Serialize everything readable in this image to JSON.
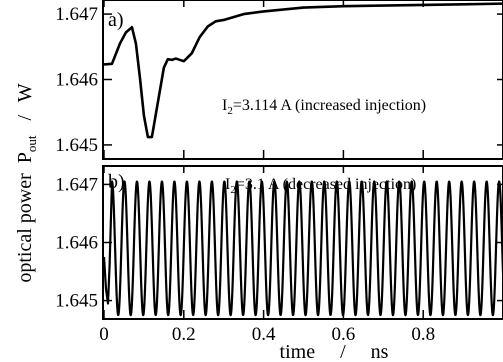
{
  "chart_data": [
    {
      "panel": "a)",
      "type": "line",
      "annotation": {
        "current_symbol": "I",
        "current_subscript": "2",
        "text": "=3.114 A  (increased injection)"
      },
      "ylim": [
        1.6448,
        1.6472
      ],
      "xlim": [
        0,
        1.0
      ],
      "yticks": [
        1.645,
        1.646,
        1.647
      ],
      "ytick_labels": [
        "1.645",
        "1.646",
        "1.647"
      ],
      "series": [
        {
          "x": [
            0,
            0.02,
            0.04,
            0.055,
            0.07,
            0.08,
            0.09,
            0.1,
            0.11,
            0.12,
            0.135,
            0.15,
            0.16,
            0.17,
            0.18,
            0.2,
            0.22,
            0.24,
            0.26,
            0.28,
            0.3,
            0.35,
            0.4,
            0.5,
            0.6,
            0.7,
            0.8,
            0.9,
            1.0
          ],
          "y": [
            1.64623,
            1.64624,
            1.64655,
            1.64672,
            1.6468,
            1.64655,
            1.64603,
            1.64545,
            1.64512,
            1.64512,
            1.64565,
            1.64618,
            1.64631,
            1.6463,
            1.64632,
            1.64628,
            1.6464,
            1.64665,
            1.64681,
            1.64689,
            1.64691,
            1.647,
            1.64704,
            1.6471,
            1.64712,
            1.64713,
            1.64714,
            1.64715,
            1.64716
          ]
        }
      ]
    },
    {
      "panel": "b)",
      "type": "line",
      "annotation": {
        "current_symbol": "I",
        "current_subscript": "2",
        "text": "=3.1 A   (decreased injection)"
      },
      "ylim": [
        1.6447,
        1.6473
      ],
      "xlim": [
        0,
        1.0
      ],
      "yticks": [
        1.645,
        1.646,
        1.647
      ],
      "ytick_labels": [
        "1.645",
        "1.646",
        "1.647"
      ],
      "series": [
        {
          "oscillation": {
            "mean": 1.6459,
            "amplitude": 0.00115,
            "period_ns": 0.0313,
            "first_peak_ns": 0.02
          },
          "x": [
            0,
            0.005,
            0.01,
            0.014,
            0.02,
            0.036,
            0.051,
            0.067,
            0.083,
            0.098,
            0.114,
            0.13,
            0.145,
            0.161,
            0.177,
            0.192,
            0.208,
            0.223,
            0.239,
            0.255,
            0.27,
            0.286,
            0.302,
            0.317,
            0.333,
            0.348,
            0.364,
            0.38,
            0.395,
            0.411,
            0.427,
            0.442,
            0.458,
            0.473,
            0.489,
            0.505,
            0.52,
            0.536,
            0.552,
            0.567,
            0.583,
            0.598,
            0.614,
            0.63,
            0.645,
            0.661,
            0.677,
            0.692,
            0.708,
            0.723,
            0.739,
            0.755,
            0.77,
            0.786,
            0.802,
            0.817,
            0.833,
            0.848,
            0.864,
            0.88,
            0.895,
            0.911,
            0.927,
            0.942,
            0.958,
            0.973,
            0.989,
            1.0
          ],
          "y": [
            1.64575,
            1.6452,
            1.64495,
            1.6456,
            1.64705,
            1.64475,
            1.64705,
            1.64475,
            1.64705,
            1.64475,
            1.64705,
            1.64475,
            1.64705,
            1.64475,
            1.64705,
            1.64475,
            1.64705,
            1.64475,
            1.64705,
            1.64475,
            1.64705,
            1.64475,
            1.64705,
            1.64475,
            1.64705,
            1.64475,
            1.64705,
            1.64475,
            1.64705,
            1.64475,
            1.64705,
            1.64475,
            1.64705,
            1.64475,
            1.64705,
            1.64475,
            1.64705,
            1.64475,
            1.64705,
            1.64475,
            1.64705,
            1.64475,
            1.64705,
            1.64475,
            1.64705,
            1.64475,
            1.64705,
            1.64475,
            1.64705,
            1.64475,
            1.64705,
            1.64475,
            1.64705,
            1.64475,
            1.64705,
            1.64475,
            1.64705,
            1.64475,
            1.64705,
            1.64475,
            1.64705,
            1.64475,
            1.64705,
            1.64475,
            1.64705,
            1.64475,
            1.64705,
            1.6458
          ]
        }
      ]
    }
  ],
  "xticks": [
    0,
    0.2,
    0.4,
    0.6,
    0.8
  ],
  "xtick_labels": [
    "0",
    "0.2",
    "0.4",
    "0.6",
    "0.8"
  ],
  "xlabel": {
    "quantity": "time",
    "separator": "/",
    "unit": "ns"
  },
  "ylabel": {
    "quantity": "optical power",
    "symbol": "P",
    "subscript": "out",
    "separator": "/",
    "unit": "W"
  }
}
